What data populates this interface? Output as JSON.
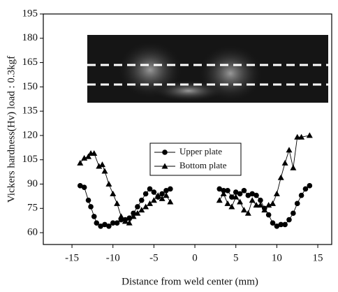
{
  "chart_data": {
    "type": "line",
    "x_label": "Distance from weld center (mm)",
    "y_label": "Vickers hardness(Hv) load : 0.3kgf",
    "xlim": [
      -18.5,
      16.7
    ],
    "ylim": [
      52.7,
      195
    ],
    "xticks": [
      -15,
      -10,
      -5,
      0,
      5,
      10,
      15
    ],
    "yticks": [
      60,
      75,
      90,
      105,
      120,
      135,
      150,
      165,
      180,
      195
    ],
    "legend": "center",
    "series": [
      {
        "name": "Upper plate",
        "color": "#000000",
        "marker": "circle",
        "x": [
          -14,
          -13.5,
          -13,
          -12.7,
          -12.3,
          -12,
          -11.5,
          -11,
          -10.5,
          -10,
          -9.5,
          -9,
          -8.5,
          -8,
          -7.5,
          -7,
          -6.5,
          -6,
          -5.5,
          -5,
          -4.5,
          -4,
          -3.5,
          -3,
          null,
          3,
          3.5,
          4,
          4.5,
          5,
          5.5,
          6,
          6.5,
          7,
          7.5,
          8,
          8.5,
          9,
          9.5,
          10,
          10.5,
          11,
          11.5,
          12,
          12.5,
          13,
          13.5,
          14
        ],
        "values": [
          89,
          88,
          80,
          76,
          70,
          66,
          64,
          65,
          64,
          66,
          66,
          68,
          68,
          69,
          72,
          76,
          80,
          84,
          87,
          85,
          82,
          84,
          86,
          87,
          null,
          87,
          86,
          86,
          82,
          85,
          84,
          86,
          83,
          84,
          83,
          80,
          75,
          71,
          66,
          64,
          65,
          65,
          68,
          72,
          78,
          83,
          87,
          89
        ]
      },
      {
        "name": "Bottom plate",
        "color": "#000000",
        "marker": "triangle",
        "x": [
          -14,
          -13.5,
          -13,
          -12.7,
          -12.3,
          -11.7,
          -11.3,
          -11,
          -10.5,
          -10,
          -9.5,
          -9,
          -8.5,
          -8,
          -7.5,
          -7,
          -6.5,
          -6,
          -5.5,
          -5,
          -4.5,
          -4,
          -3.5,
          -3,
          null,
          3,
          3.5,
          4,
          4.5,
          5,
          5.5,
          6,
          6.5,
          7,
          7.5,
          8,
          8.5,
          9,
          9.5,
          10,
          10.5,
          11,
          11.5,
          12,
          12.5,
          13,
          14
        ],
        "values": [
          103,
          106,
          107,
          109,
          109,
          101,
          102,
          98,
          90,
          84,
          78,
          70,
          67,
          66,
          70,
          72,
          74,
          76,
          78,
          80,
          83,
          81,
          83,
          79,
          null,
          80,
          84,
          78,
          76,
          82,
          79,
          74,
          72,
          80,
          77,
          77,
          74,
          77,
          78,
          84,
          94,
          103,
          111,
          100,
          119,
          119,
          120
        ]
      }
    ]
  }
}
